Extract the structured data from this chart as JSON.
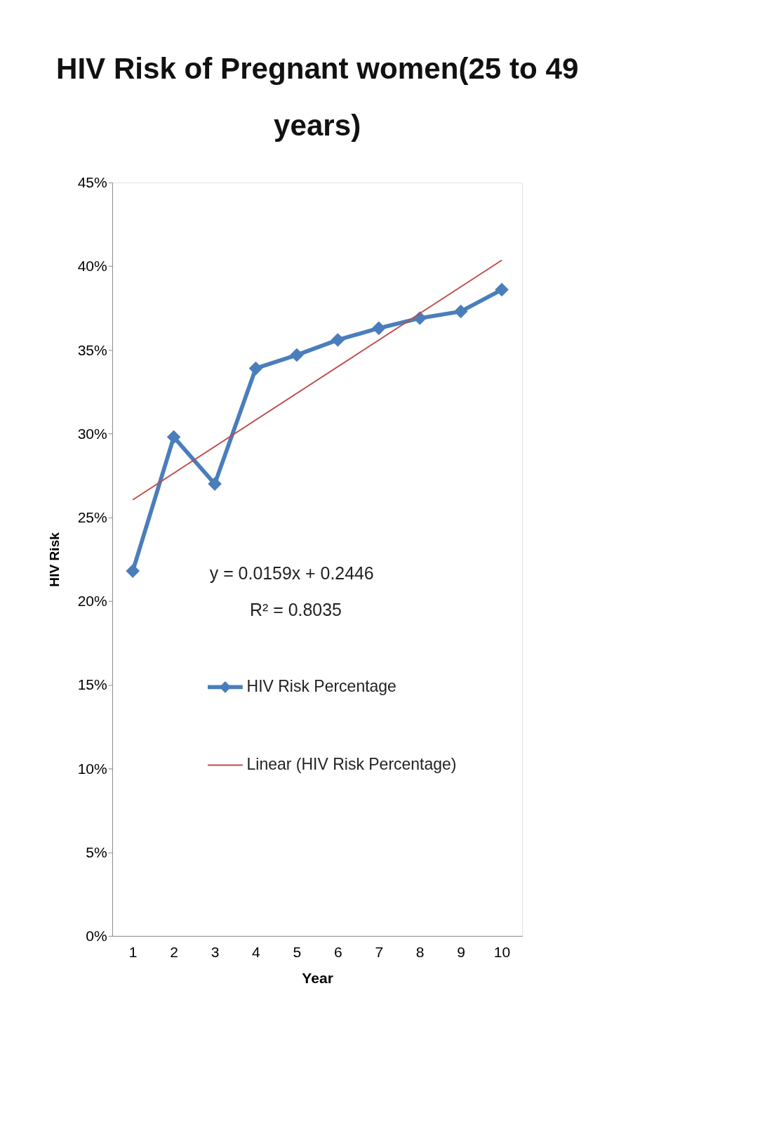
{
  "chart_data": {
    "type": "line",
    "title": "HIV Risk of Pregnant women(25 to 49 years)",
    "xlabel": "Year",
    "ylabel": "HIV Risk",
    "categories": [
      "1",
      "2",
      "3",
      "4",
      "5",
      "6",
      "7",
      "8",
      "9",
      "10"
    ],
    "series": [
      {
        "name": "HIV Risk Percentage",
        "color": "#4a7ebb",
        "marker": "diamond",
        "values": [
          21.8,
          29.8,
          27.0,
          33.9,
          34.7,
          35.6,
          36.3,
          36.9,
          37.3,
          38.6
        ]
      },
      {
        "name": "Linear (HIV Risk Percentage)",
        "color": "#be4b48",
        "type": "line",
        "marker": "none",
        "x": [
          "1",
          "10"
        ],
        "values": [
          26.05,
          40.36
        ]
      }
    ],
    "ylim": [
      0,
      45
    ],
    "yticks": [
      {
        "value": 0,
        "label": "0%"
      },
      {
        "value": 5,
        "label": "5%"
      },
      {
        "value": 10,
        "label": "10%"
      },
      {
        "value": 15,
        "label": "15%"
      },
      {
        "value": 20,
        "label": "20%"
      },
      {
        "value": 25,
        "label": "25%"
      },
      {
        "value": 30,
        "label": "30%"
      },
      {
        "value": 35,
        "label": "35%"
      },
      {
        "value": 40,
        "label": "40%"
      },
      {
        "value": 45,
        "label": "45%"
      }
    ],
    "annotations": [
      "y = 0.0159x + 0.2446",
      "R² = 0.8035"
    ],
    "grid": false,
    "legend": "left"
  }
}
